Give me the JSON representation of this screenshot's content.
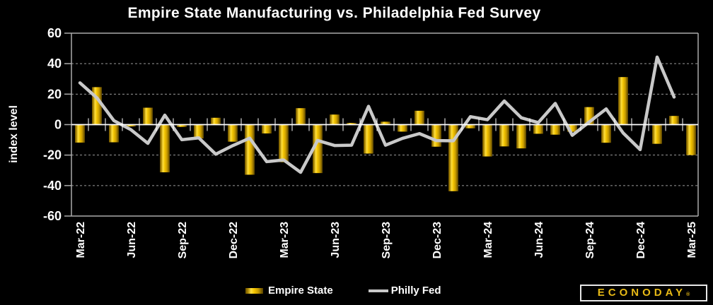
{
  "title": "Empire State Manufacturing vs. Philadelphia Fed Survey",
  "y_axis_label": "index level",
  "logo": {
    "text": "ECONODAY",
    "mark": "®"
  },
  "colors": {
    "background": "#000000",
    "text": "#ffffff",
    "axis_border": "#ababab",
    "gridline": "#9b9b9b",
    "zero_line": "#ffffff",
    "philly_line": "#c9c9c9",
    "logo_yellow": "#e8ba16",
    "logo_border": "#e8e8e8",
    "bar_gradient": [
      "#6b5200",
      "#a07c00",
      "#ffdf3e",
      "#f2c300",
      "#c79b00",
      "#554000"
    ]
  },
  "chart_data": {
    "type": "combo-bar-line",
    "title": "Empire State Manufacturing vs. Philadelphia Fed Survey",
    "xlabel": "",
    "ylabel": "index level",
    "ylim": [
      -60,
      60
    ],
    "ytick_step": 20,
    "ytick_labels": [
      "60",
      "40",
      "20",
      "0",
      "-20",
      "-40",
      "-60"
    ],
    "grid": "horizontal-dashed",
    "legend_position": "bottom-center",
    "xtick_every": 3,
    "xtick_labels_shown": [
      "Mar-22",
      "Jun-22",
      "Sep-22",
      "Dec-22",
      "Mar-23",
      "Jun-23",
      "Sep-23",
      "Dec-23",
      "Mar-24",
      "Jun-24",
      "Sep-24",
      "Dec-24",
      "Mar-25"
    ],
    "categories": [
      "Mar-22",
      "Apr-22",
      "May-22",
      "Jun-22",
      "Jul-22",
      "Aug-22",
      "Sep-22",
      "Oct-22",
      "Nov-22",
      "Dec-22",
      "Jan-23",
      "Feb-23",
      "Mar-23",
      "Apr-23",
      "May-23",
      "Jun-23",
      "Jul-23",
      "Aug-23",
      "Sep-23",
      "Oct-23",
      "Nov-23",
      "Dec-23",
      "Jan-24",
      "Feb-24",
      "Mar-24",
      "Apr-24",
      "May-24",
      "Jun-24",
      "Jul-24",
      "Aug-24",
      "Sep-24",
      "Oct-24",
      "Nov-24",
      "Dec-24",
      "Jan-25",
      "Feb-25",
      "Mar-25"
    ],
    "series": [
      {
        "name": "Empire State",
        "type": "bar",
        "values": [
          -11.8,
          24.6,
          -11.6,
          -1.2,
          11.1,
          -31.3,
          -1.5,
          -9.1,
          4.5,
          -11.2,
          -32.9,
          -5.8,
          -24.6,
          10.8,
          -31.8,
          6.6,
          1.1,
          -19.0,
          1.9,
          -4.6,
          9.1,
          -14.5,
          -43.7,
          -2.4,
          -20.9,
          -14.3,
          -15.6,
          -6.0,
          -6.6,
          -4.7,
          11.5,
          -11.9,
          31.2,
          0.2,
          -12.6,
          5.7,
          -20.0
        ]
      },
      {
        "name": "Philly Fed",
        "type": "line",
        "values": [
          27.4,
          17.6,
          2.6,
          -3.3,
          -12.3,
          6.2,
          -9.9,
          -8.7,
          -19.4,
          -13.8,
          -8.9,
          -24.3,
          -23.2,
          -31.3,
          -10.4,
          -13.7,
          -13.5,
          12.0,
          -13.5,
          -9.0,
          -5.9,
          -10.5,
          -10.6,
          5.2,
          3.2,
          15.5,
          4.5,
          1.3,
          13.9,
          -7.0,
          1.7,
          10.3,
          -5.5,
          -16.4,
          44.3,
          18.1,
          null
        ]
      }
    ]
  }
}
